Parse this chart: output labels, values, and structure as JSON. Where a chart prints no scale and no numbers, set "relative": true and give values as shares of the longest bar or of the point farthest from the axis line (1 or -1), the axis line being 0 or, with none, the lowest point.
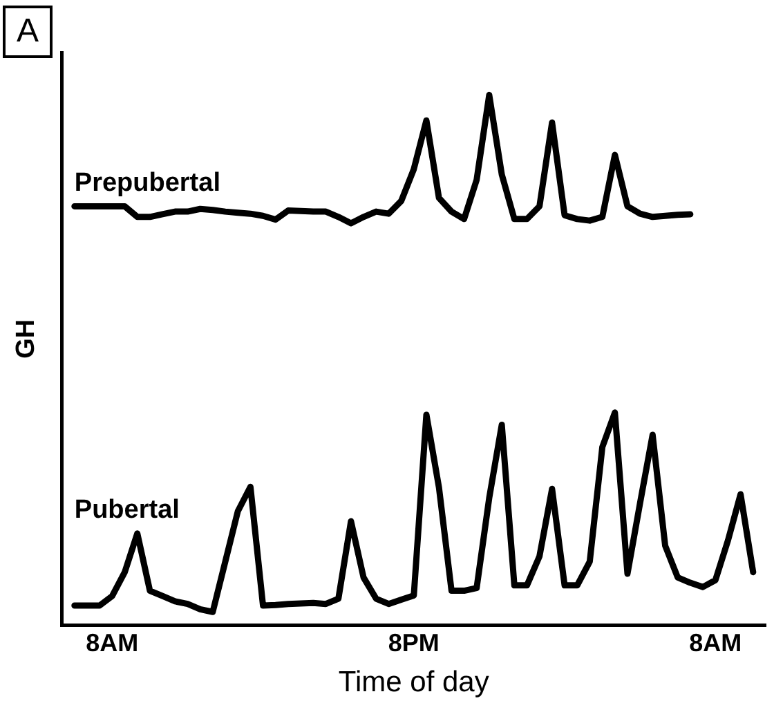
{
  "chart_data": {
    "type": "line",
    "relative": true,
    "xlabel": "Time of day",
    "ylabel": "GH",
    "annotations": [
      "A"
    ],
    "categories": [
      null,
      null,
      null,
      null,
      "8AM",
      null,
      null,
      null,
      null,
      null,
      null,
      null,
      null,
      null,
      null,
      null,
      null,
      null,
      null,
      null,
      null,
      null,
      null,
      null,
      null,
      null,
      null,
      null,
      "8PM",
      null,
      null,
      null,
      null,
      null,
      null,
      null,
      null,
      null,
      null,
      null,
      null,
      null,
      null,
      null,
      null,
      null,
      null,
      null,
      null,
      null,
      null,
      null,
      "8AM",
      null,
      null,
      null,
      null
    ],
    "grid": false,
    "marker": "none",
    "line_style": "solid",
    "series": [
      {
        "name": "Prepubertal",
        "color": "#000000",
        "values": [
          null,
          0.79,
          0.79,
          0.79,
          0.79,
          0.79,
          0.77,
          0.77,
          0.775,
          0.78,
          0.78,
          0.785,
          0.783,
          0.78,
          0.778,
          0.776,
          0.772,
          0.765,
          0.782,
          0.781,
          0.78,
          0.78,
          0.77,
          0.758,
          0.77,
          0.78,
          0.776,
          0.8,
          0.86,
          0.952,
          0.806,
          0.78,
          0.766,
          0.84,
          1,
          0.85,
          0.766,
          0.766,
          0.79,
          0.948,
          0.773,
          0.766,
          0.763,
          0.77,
          0.887,
          0.79,
          0.776,
          0.77,
          0.772,
          0.774,
          0.775,
          null,
          null,
          null,
          null,
          null,
          null
        ]
      },
      {
        "name": "Pubertal",
        "color": "#000000",
        "values": [
          null,
          0.037,
          0.037,
          0.037,
          0.055,
          0.1,
          0.173,
          0.065,
          0.055,
          0.045,
          0.04,
          0.03,
          0.025,
          0.12,
          0.215,
          0.261,
          0.037,
          0.038,
          0.04,
          0.041,
          0.042,
          0.04,
          0.05,
          0.196,
          0.09,
          0.05,
          0.04,
          0.048,
          0.056,
          0.397,
          0.26,
          0.065,
          0.065,
          0.07,
          0.24,
          0.378,
          0.075,
          0.075,
          0.13,
          0.257,
          0.075,
          0.075,
          0.12,
          0.336,
          0.401,
          0.097,
          0.23,
          0.359,
          0.15,
          0.09,
          0.08,
          0.072,
          0.085,
          0.16,
          0.247,
          0.1,
          null
        ]
      }
    ]
  }
}
